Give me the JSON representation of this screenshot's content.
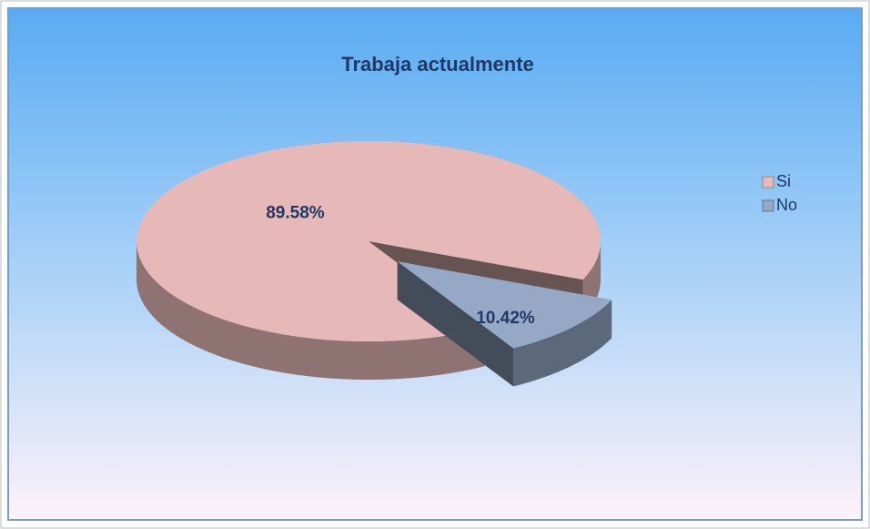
{
  "chart_data": {
    "type": "pie3d",
    "title": "Trabaja actualmente",
    "categories": [
      "Si",
      "No"
    ],
    "values": [
      89.58,
      10.42
    ],
    "value_labels": [
      "89.58%",
      "10.42%"
    ],
    "colors": [
      "#e6b9b8",
      "#95a9c6"
    ],
    "legend": "right"
  }
}
